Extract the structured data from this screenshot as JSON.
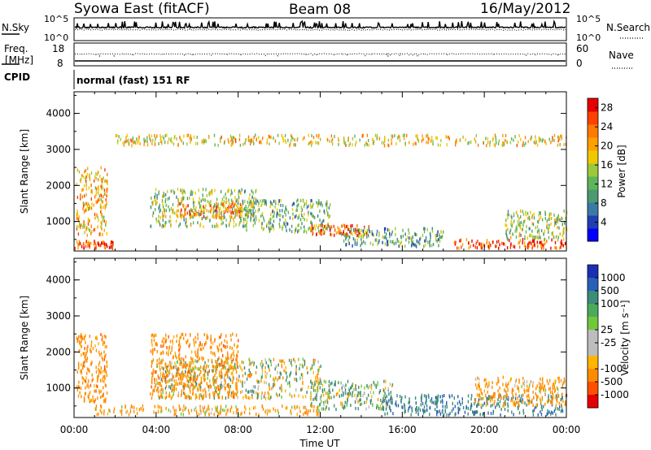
{
  "header": {
    "station": "Syowa East (fitACF)",
    "beam": "Beam 08",
    "date": "16/May/2012"
  },
  "summary_panel": {
    "nsky_label": "N.Sky",
    "nsearch_label": "N.Search",
    "count_ticks": [
      "10^5",
      "10^0"
    ],
    "freq_label_1": "Freq.",
    "freq_label_2": "[MHz]",
    "freq_ticks": [
      "18",
      "8"
    ],
    "nave_label": "Nave",
    "nave_ticks": [
      "60",
      "0"
    ],
    "cpid_label": "CPID",
    "cpid_value": "normal (fast) 151 RF"
  },
  "chart_data": [
    {
      "type": "heatmap",
      "name": "power",
      "xlabel": "",
      "ylabel": "Slant Range [km]",
      "x_ticks": [
        "00:00",
        "04:00",
        "08:00",
        "12:00",
        "16:00",
        "20:00",
        "00:00"
      ],
      "y_ticks": [
        "1000",
        "2000",
        "3000",
        "4000"
      ],
      "xlim": [
        0,
        24
      ],
      "ylim": [
        180,
        4600
      ],
      "colorbar": {
        "label": "Power [dB]",
        "ticks": [
          "4",
          "8",
          "12",
          "16",
          "20",
          "24",
          "28"
        ],
        "range": [
          0,
          30
        ],
        "colors": [
          "#0000ff",
          "#1f3fb3",
          "#3c7aa6",
          "#4c9a70",
          "#5fb55a",
          "#9cc83c",
          "#f0c800",
          "#ffa000",
          "#ff7a00",
          "#ff4000",
          "#e60000"
        ]
      },
      "scatter_regions": [
        {
          "t": [
            0.1,
            1.6
          ],
          "r": [
            600,
            2500
          ],
          "value": 20
        },
        {
          "t": [
            0.0,
            2.0
          ],
          "r": [
            250,
            450
          ],
          "value": 26
        },
        {
          "t": [
            3.7,
            9.0
          ],
          "r": [
            850,
            1900
          ],
          "value": 14
        },
        {
          "t": [
            5.0,
            8.5
          ],
          "r": [
            1100,
            1500
          ],
          "value": 22
        },
        {
          "t": [
            8.0,
            12.5
          ],
          "r": [
            700,
            1600
          ],
          "value": 12
        },
        {
          "t": [
            11.5,
            14.5
          ],
          "r": [
            600,
            900
          ],
          "value": 24
        },
        {
          "t": [
            13.0,
            18.0
          ],
          "r": [
            300,
            800
          ],
          "value": 10
        },
        {
          "t": [
            18.5,
            24.0
          ],
          "r": [
            250,
            500
          ],
          "value": 26
        },
        {
          "t": [
            21.0,
            24.0
          ],
          "r": [
            500,
            1300
          ],
          "value": 14
        },
        {
          "t": [
            2.0,
            24.0
          ],
          "r": [
            3100,
            3400
          ],
          "value": 18
        }
      ]
    },
    {
      "type": "heatmap",
      "name": "velocity",
      "xlabel": "Time UT",
      "ylabel": "Slant Range [km]",
      "x_ticks": [
        "00:00",
        "04:00",
        "08:00",
        "12:00",
        "16:00",
        "20:00",
        "00:00"
      ],
      "y_ticks": [
        "1000",
        "2000",
        "3000",
        "4000"
      ],
      "xlim": [
        0,
        24
      ],
      "ylim": [
        180,
        4600
      ],
      "colorbar": {
        "label": "Velocity [m s⁻¹]",
        "ticks": [
          "1000",
          "500",
          "100",
          "25",
          "-25",
          "-100",
          "-500",
          "-1000"
        ],
        "colors": [
          "#1a2fb4",
          "#2a5fb8",
          "#3c8c78",
          "#4caa5a",
          "#72c83c",
          "#bdbdbd",
          "#bdbdbd",
          "#ffb400",
          "#ff8c00",
          "#ff5000",
          "#e60000"
        ]
      },
      "scatter_regions": [
        {
          "t": [
            0.1,
            1.6
          ],
          "r": [
            600,
            2500
          ],
          "value": -300
        },
        {
          "t": [
            4.0,
            12.0
          ],
          "r": [
            700,
            1800
          ],
          "value": 0
        },
        {
          "t": [
            3.7,
            8.0
          ],
          "r": [
            700,
            2500
          ],
          "value": -300
        },
        {
          "t": [
            11.5,
            15.5
          ],
          "r": [
            400,
            1200
          ],
          "value": 120
        },
        {
          "t": [
            15.0,
            24.0
          ],
          "r": [
            250,
            800
          ],
          "value": 400
        },
        {
          "t": [
            19.5,
            24.0
          ],
          "r": [
            500,
            1300
          ],
          "value": -200
        },
        {
          "t": [
            1.0,
            12.0
          ],
          "r": [
            250,
            500
          ],
          "value": -150
        }
      ]
    }
  ]
}
